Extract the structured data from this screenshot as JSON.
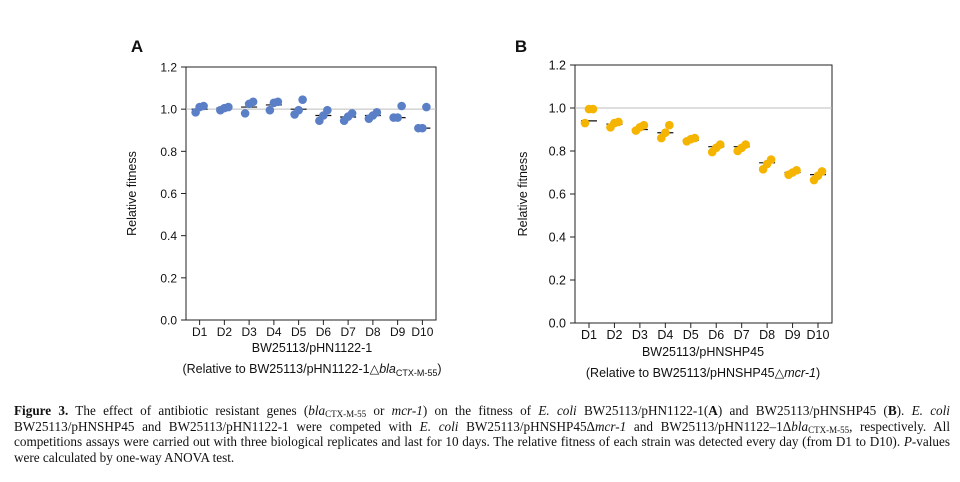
{
  "chart_data": [
    {
      "type": "scatter",
      "panel_label": "A",
      "categories": [
        "D1",
        "D2",
        "D3",
        "D4",
        "D5",
        "D6",
        "D7",
        "D8",
        "D9",
        "D10"
      ],
      "ylabel": "Relative fitness",
      "xlabel_line1": "BW25113/pHN1122-1",
      "xlabel_line2_prefix": "(Relative to BW25113/pHN1122-1△",
      "xlabel_line2_italic": "bla",
      "xlabel_line2_sub": "CTX-M-55",
      "xlabel_line2_suffix": ")",
      "ylim": [
        0.0,
        1.2
      ],
      "yticks": [
        "0.0",
        "0.2",
        "0.4",
        "0.6",
        "0.8",
        "1.0",
        "1.2"
      ],
      "reference_line": 1.0,
      "color": "#5b7fc7",
      "points": [
        [
          0.985,
          1.01,
          1.015
        ],
        [
          0.995,
          1.005,
          1.01
        ],
        [
          0.98,
          1.025,
          1.035
        ],
        [
          0.995,
          1.03,
          1.035
        ],
        [
          0.975,
          0.995,
          1.045
        ],
        [
          0.945,
          0.97,
          0.995
        ],
        [
          0.945,
          0.965,
          0.98
        ],
        [
          0.955,
          0.97,
          0.985
        ],
        [
          0.96,
          0.96,
          1.015
        ],
        [
          0.91,
          0.91,
          1.01
        ]
      ],
      "means": [
        1.0,
        1.005,
        1.01,
        1.02,
        1.0,
        0.97,
        0.963,
        0.97,
        0.96,
        0.91
      ],
      "grid": false,
      "legend": "none"
    },
    {
      "type": "scatter",
      "panel_label": "B",
      "categories": [
        "D1",
        "D2",
        "D3",
        "D4",
        "D5",
        "D6",
        "D7",
        "D8",
        "D9",
        "D10"
      ],
      "ylabel": "Relative fitness",
      "xlabel_line1": "BW25113/pHNSHP45",
      "xlabel_line2_prefix": "(Relative to BW25113/pHNSHP45△",
      "xlabel_line2_italic": "mcr-1",
      "xlabel_line2_sub": "",
      "xlabel_line2_suffix": ")",
      "ylim": [
        0.0,
        1.2
      ],
      "yticks": [
        "0.0",
        "0.2",
        "0.4",
        "0.6",
        "0.8",
        "1.0",
        "1.2"
      ],
      "reference_line": 1.0,
      "color": "#f5b400",
      "points": [
        [
          0.93,
          0.995,
          0.995
        ],
        [
          0.91,
          0.93,
          0.935
        ],
        [
          0.895,
          0.91,
          0.92
        ],
        [
          0.86,
          0.885,
          0.92
        ],
        [
          0.845,
          0.855,
          0.86
        ],
        [
          0.795,
          0.815,
          0.83
        ],
        [
          0.8,
          0.815,
          0.83
        ],
        [
          0.715,
          0.74,
          0.76
        ],
        [
          0.69,
          0.7,
          0.71
        ],
        [
          0.665,
          0.685,
          0.705
        ]
      ],
      "means": [
        0.94,
        0.925,
        0.9,
        0.885,
        0.85,
        0.82,
        0.82,
        0.745,
        0.7,
        0.69
      ],
      "grid": false,
      "legend": "none"
    }
  ],
  "caption": {
    "fig_label": "Figure 3.",
    "t1": " The effect of antibiotic resistant genes (",
    "gene1": "bla",
    "gene1_sub": "CTX-M-55",
    "t2": " or ",
    "gene2": "mcr-1",
    "t3": ") on the fitness of ",
    "ecoli1": "E. coli",
    "t4": " BW25113/pHN1122-1(",
    "A": "A",
    "t5": ") and BW25113/pHNSHP45 (",
    "B": "B",
    "t6": "). ",
    "ecoli2": "E. coli",
    "t7": " BW25113/pHNSHP45 and BW25113/pHN1122-1 were competed with ",
    "ecoli3": "E. coli",
    "t8": " BW25113/pHNSHP45Δ",
    "gene3": "mcr-1",
    "t9": " and BW25113/pHN1122–1Δ",
    "gene4": "bla",
    "gene4_sub": "CTX-M-55",
    "t10": ", respectively. All competitions assays were carried out with three biological replicates and last for 10 days. The relative fitness of each strain was detected every day (from D1 to D10). ",
    "pval": "P",
    "t11": "-values were calculated by one-way ANOVA test."
  }
}
